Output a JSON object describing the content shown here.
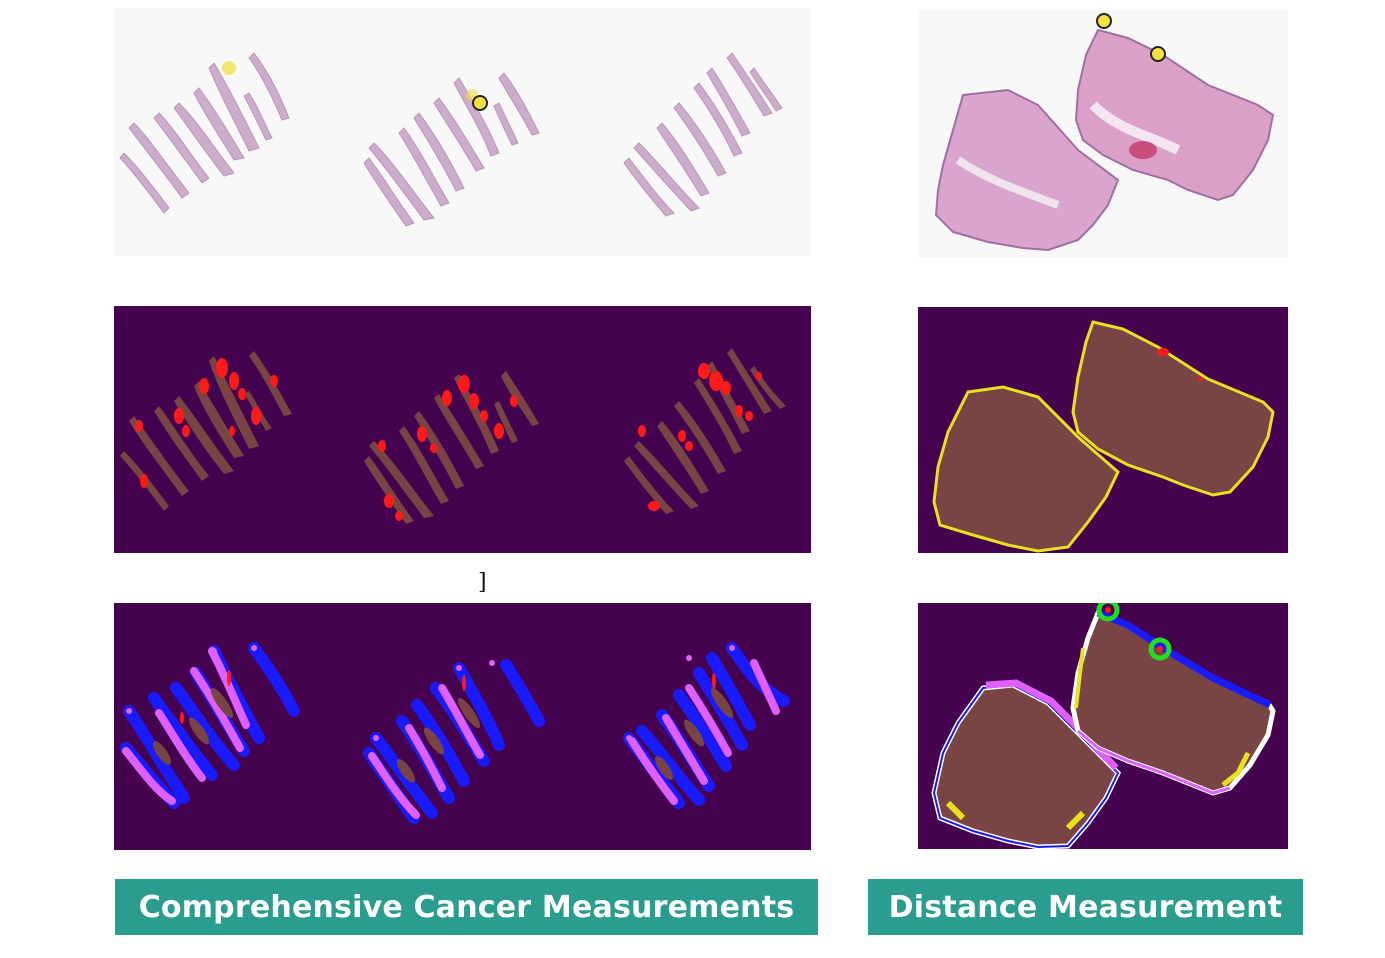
{
  "captions": {
    "left": "Comprehensive Cancer Measurements",
    "right": "Distance Measurement"
  },
  "stray_mark": "]",
  "colors": {
    "background_mask": "#44024f",
    "tissue": "#784444",
    "tumor": "#ff1a1a",
    "boundary_inner": "#1a1aff",
    "boundary_outer": "#e060ff",
    "margin_yellow": "#e8e020",
    "marker_yellow": "#f0e040",
    "marker_green": "#22dd22",
    "he_stain": "#c58ab8",
    "caption_bg": "#2a9d8f"
  }
}
